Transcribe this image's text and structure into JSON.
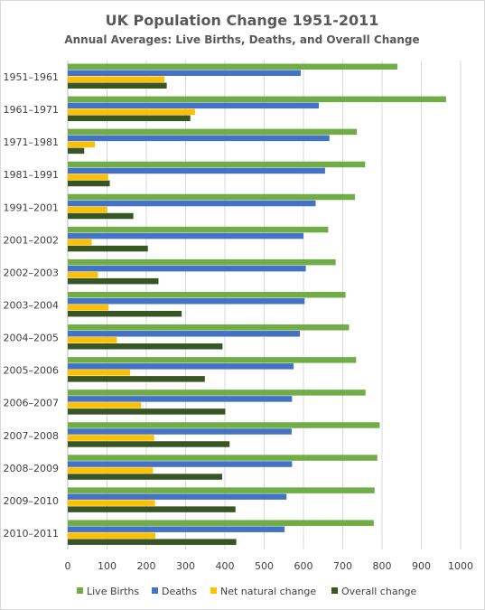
{
  "chart_data": {
    "type": "bar",
    "orientation": "horizontal",
    "title": "UK Population Change 1951-2011",
    "subtitle": "Annual Averages: Live Births, Deaths, and Overall Change",
    "categories": [
      "1951–1961",
      "1961–1971",
      "1971–1981",
      "1981–1991",
      "1991–2001",
      "2001–2002",
      "2002–2003",
      "2003–2004",
      "2004–2005",
      "2005–2006",
      "2006–2007",
      "2007–2008",
      "2008–2009",
      "2009–2010",
      "2010–2011"
    ],
    "series": [
      {
        "name": "Live Births",
        "color": "#70ad47",
        "values": [
          839,
          963,
          736,
          757,
          731,
          663,
          682,
          707,
          716,
          734,
          758,
          794,
          788,
          781,
          779
        ]
      },
      {
        "name": "Deaths",
        "color": "#4472c4",
        "values": [
          593,
          639,
          666,
          655,
          631,
          600,
          606,
          603,
          591,
          575,
          571,
          570,
          571,
          557,
          552
        ]
      },
      {
        "name": "Net natural change",
        "color": "#ffc000",
        "values": [
          246,
          324,
          69,
          103,
          100,
          61,
          77,
          104,
          125,
          159,
          187,
          220,
          217,
          222,
          223
        ]
      },
      {
        "name": "Overall change",
        "color": "#375623",
        "values": [
          252,
          312,
          42,
          107,
          167,
          204,
          231,
          290,
          394,
          349,
          401,
          412,
          393,
          427,
          429
        ]
      }
    ],
    "x_ticks": [
      "0",
      "100",
      "200",
      "300",
      "400",
      "500",
      "600",
      "700",
      "800",
      "900",
      "1000"
    ],
    "xlim": [
      0,
      1000
    ],
    "grid": true,
    "legend_position": "bottom"
  }
}
